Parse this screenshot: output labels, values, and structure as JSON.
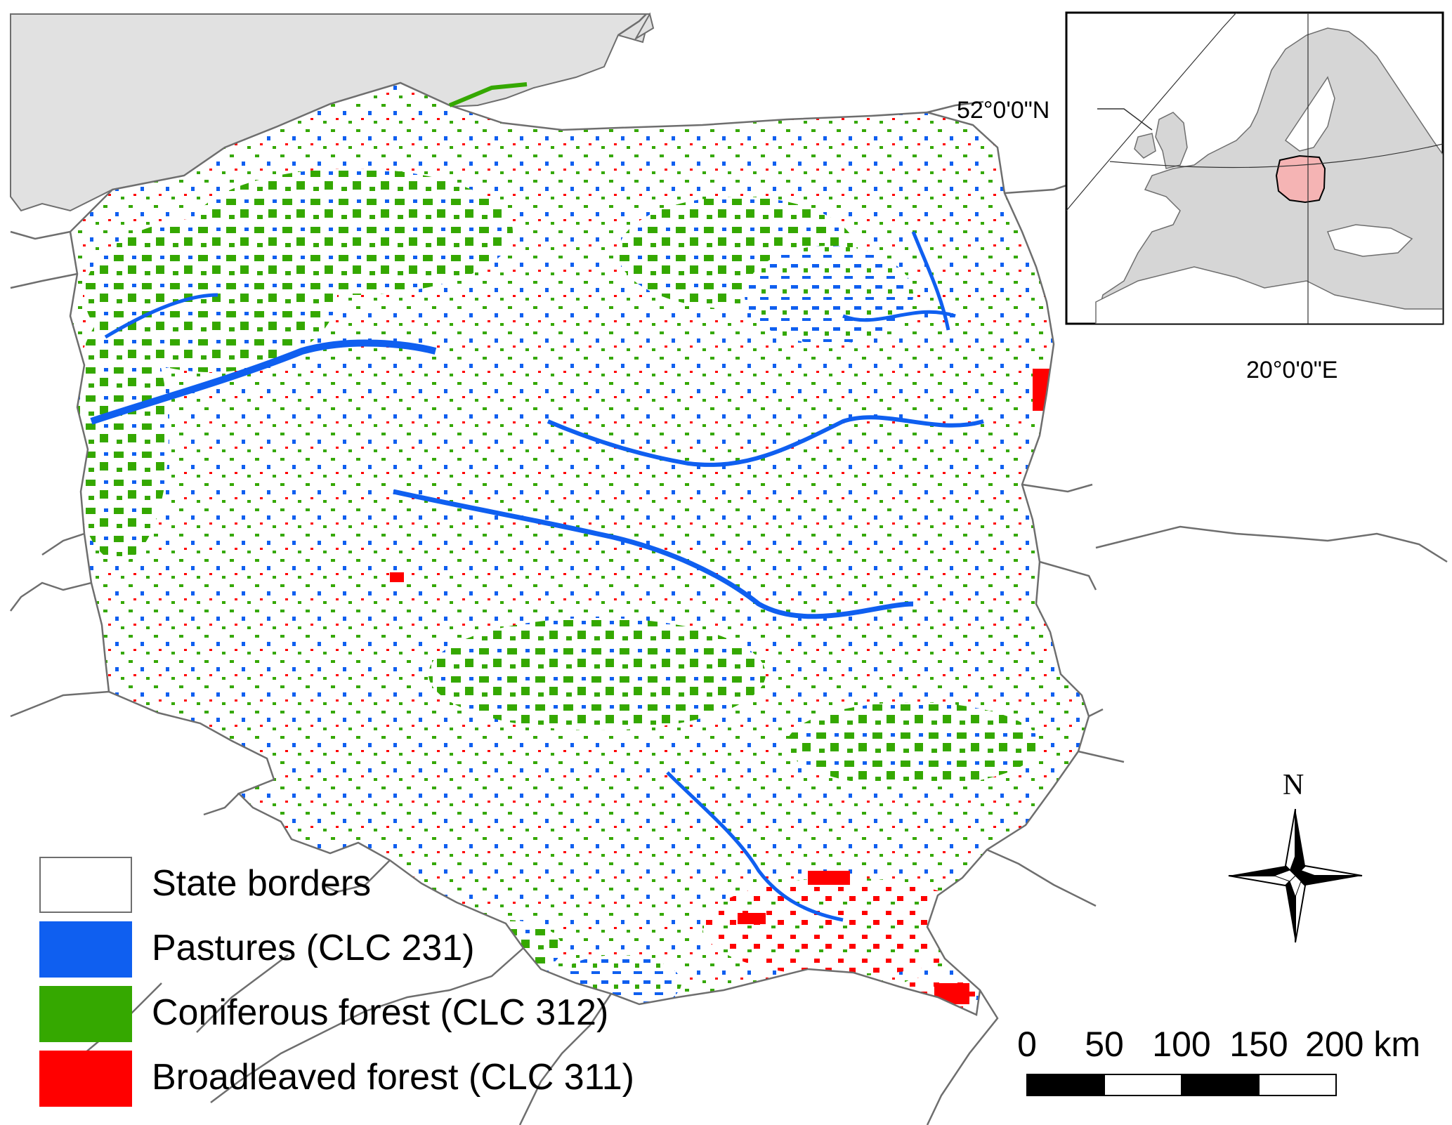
{
  "legend": {
    "items": [
      {
        "label": "State borders",
        "color": "#ffffff"
      },
      {
        "label": "Pastures (CLC 231)",
        "color": "#0f5ff0"
      },
      {
        "label": "Coniferous forest (CLC 312)",
        "color": "#35a800"
      },
      {
        "label": "Broadleaved forest (CLC 311)",
        "color": "#ff0000"
      }
    ]
  },
  "inset": {
    "latitude_label": "52°0'0\"N",
    "longitude_label": "20°0'0\"E",
    "highlight_color": "#f5b4b4"
  },
  "north_arrow": {
    "label": "N"
  },
  "scale_bar": {
    "ticks": [
      "0",
      "50",
      "100",
      "150",
      "200 km"
    ]
  },
  "colors": {
    "sea": "#e1e1e1",
    "land": "#ffffff",
    "border": "#6e6e6e"
  }
}
